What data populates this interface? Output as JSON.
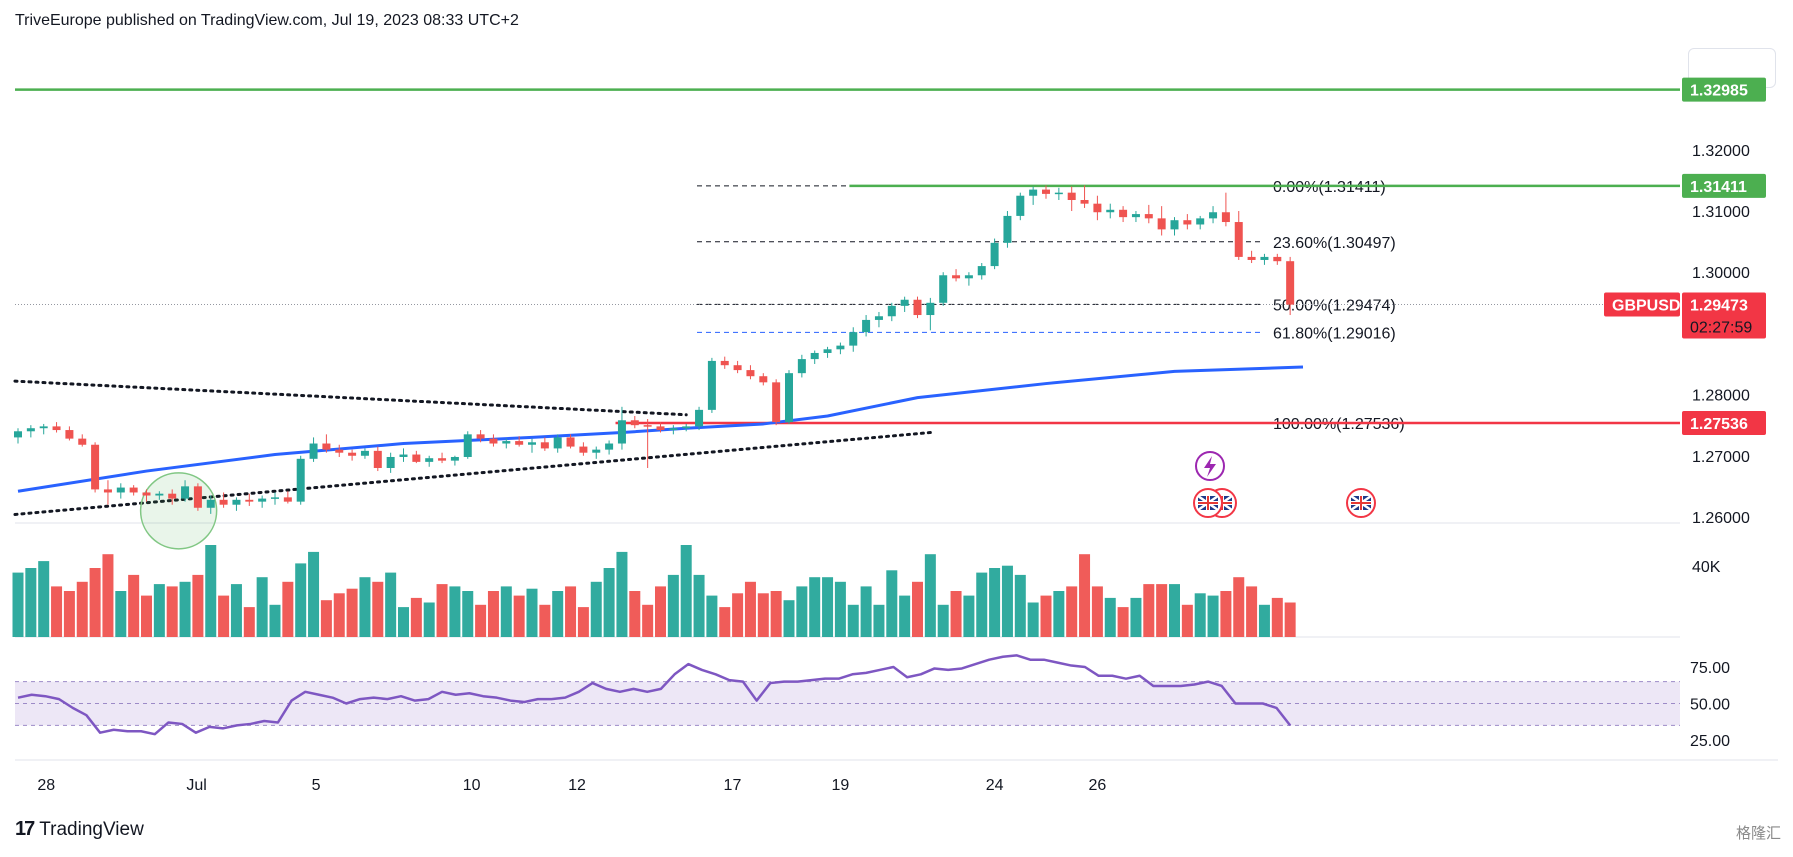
{
  "header": {
    "text": "TriveEurope published on TradingView.com, Jul 19, 2023 08:33 UTC+2"
  },
  "footer": {
    "logo": "17",
    "brand": "TradingView"
  },
  "watermark": {
    "text": "格隆汇"
  },
  "colors": {
    "up": "#26a69a",
    "down": "#ef5350",
    "ma": "#2962ff",
    "rsi": "#7e57c2",
    "rsi_band": "#ede7f6",
    "green_line": "#4caf50",
    "red_line": "#f23645",
    "fib_blue": "#2962ff"
  },
  "chart_data": {
    "type": "candlestick",
    "symbol": "GBPUSD",
    "last_price": "1.29473",
    "countdown": "02:27:59",
    "ylim": [
      1.2595,
      1.3355
    ],
    "price_ticks": [
      "1.32000",
      "1.31000",
      "1.30000",
      "1.28000",
      "1.27000",
      "1.26000"
    ],
    "x_ticks": [
      {
        "label": "28",
        "index": 2.2
      },
      {
        "label": "Jul",
        "index": 13.9
      },
      {
        "label": "5",
        "index": 23.2
      },
      {
        "label": "10",
        "index": 35.3
      },
      {
        "label": "12",
        "index": 43.5
      },
      {
        "label": "17",
        "index": 55.6
      },
      {
        "label": "19",
        "index": 64.0
      },
      {
        "label": "24",
        "index": 76.0
      },
      {
        "label": "26",
        "index": 84.0
      }
    ],
    "horizontal_levels": [
      {
        "label": "1.32985",
        "price": 1.32985,
        "color": "#4caf50"
      },
      {
        "label": "1.31411",
        "price": 1.31411,
        "color": "#4caf50"
      },
      {
        "label": "1.27536",
        "price": 1.27536,
        "color": "#f23645"
      }
    ],
    "fibonacci": [
      {
        "label": "0.00%(1.31411)",
        "price": 1.31411
      },
      {
        "label": "23.60%(1.30497)",
        "price": 1.30497
      },
      {
        "label": "50.00%(1.29474)",
        "price": 1.29474
      },
      {
        "label": "61.80%(1.29016)",
        "price": 1.29016
      },
      {
        "label": "100.00%(1.27536)",
        "price": 1.27536
      }
    ],
    "candles": [
      [
        1.273,
        1.2745,
        1.272,
        1.274
      ],
      [
        1.274,
        1.275,
        1.273,
        1.2745
      ],
      [
        1.2745,
        1.2752,
        1.2735,
        1.2748
      ],
      [
        1.2748,
        1.2755,
        1.2738,
        1.2742
      ],
      [
        1.2742,
        1.2748,
        1.2725,
        1.2728
      ],
      [
        1.2728,
        1.2735,
        1.2715,
        1.2718
      ],
      [
        1.2718,
        1.2722,
        1.264,
        1.2645
      ],
      [
        1.2645,
        1.266,
        1.262,
        1.264
      ],
      [
        1.264,
        1.2655,
        1.263,
        1.2648
      ],
      [
        1.2648,
        1.2652,
        1.2635,
        1.264
      ],
      [
        1.264,
        1.2645,
        1.2625,
        1.2635
      ],
      [
        1.2635,
        1.2642,
        1.2628,
        1.2638
      ],
      [
        1.2638,
        1.2645,
        1.262,
        1.263
      ],
      [
        1.263,
        1.266,
        1.2625,
        1.265
      ],
      [
        1.265,
        1.2655,
        1.261,
        1.2615
      ],
      [
        1.2615,
        1.2635,
        1.2605,
        1.2628
      ],
      [
        1.2628,
        1.264,
        1.2615,
        1.262
      ],
      [
        1.262,
        1.2632,
        1.261,
        1.2628
      ],
      [
        1.2628,
        1.2638,
        1.2618,
        1.2625
      ],
      [
        1.2625,
        1.2635,
        1.2615,
        1.263
      ],
      [
        1.263,
        1.264,
        1.262,
        1.2632
      ],
      [
        1.2632,
        1.2642,
        1.2622,
        1.2625
      ],
      [
        1.2625,
        1.27,
        1.262,
        1.2695
      ],
      [
        1.2695,
        1.273,
        1.269,
        1.272
      ],
      [
        1.272,
        1.2735,
        1.2705,
        1.271
      ],
      [
        1.271,
        1.2718,
        1.2698,
        1.2705
      ],
      [
        1.2705,
        1.271,
        1.2692,
        1.27
      ],
      [
        1.27,
        1.2712,
        1.2695,
        1.2708
      ],
      [
        1.2708,
        1.2715,
        1.2675,
        1.268
      ],
      [
        1.268,
        1.2705,
        1.2672,
        1.2698
      ],
      [
        1.2698,
        1.2712,
        1.269,
        1.2702
      ],
      [
        1.2702,
        1.2708,
        1.2688,
        1.269
      ],
      [
        1.269,
        1.27,
        1.2682,
        1.2696
      ],
      [
        1.2696,
        1.2705,
        1.2688,
        1.2692
      ],
      [
        1.2692,
        1.27,
        1.2684,
        1.2698
      ],
      [
        1.2698,
        1.274,
        1.2695,
        1.2735
      ],
      [
        1.2735,
        1.2742,
        1.2722,
        1.2728
      ],
      [
        1.2728,
        1.2735,
        1.2715,
        1.272
      ],
      [
        1.272,
        1.2728,
        1.2712,
        1.2724
      ],
      [
        1.2724,
        1.2732,
        1.2715,
        1.2718
      ],
      [
        1.2718,
        1.2728,
        1.2705,
        1.2722
      ],
      [
        1.2722,
        1.273,
        1.2708,
        1.2712
      ],
      [
        1.2712,
        1.2735,
        1.2705,
        1.273
      ],
      [
        1.273,
        1.2735,
        1.2712,
        1.2715
      ],
      [
        1.2715,
        1.2722,
        1.27,
        1.2705
      ],
      [
        1.2705,
        1.2715,
        1.2695,
        1.271
      ],
      [
        1.271,
        1.2725,
        1.2702,
        1.272
      ],
      [
        1.272,
        1.278,
        1.271,
        1.2758
      ],
      [
        1.2758,
        1.2765,
        1.2745,
        1.275
      ],
      [
        1.275,
        1.276,
        1.268,
        1.2748
      ],
      [
        1.2748,
        1.2755,
        1.2738,
        1.2742
      ],
      [
        1.2742,
        1.275,
        1.2735,
        1.2745
      ],
      [
        1.2745,
        1.2752,
        1.274,
        1.2748
      ],
      [
        1.2748,
        1.278,
        1.2742,
        1.2775
      ],
      [
        1.2775,
        1.286,
        1.277,
        1.2855
      ],
      [
        1.2855,
        1.2862,
        1.2842,
        1.2848
      ],
      [
        1.2848,
        1.2855,
        1.2835,
        1.284
      ],
      [
        1.284,
        1.2848,
        1.2825,
        1.283
      ],
      [
        1.283,
        1.2835,
        1.2815,
        1.282
      ],
      [
        1.282,
        1.2825,
        1.275,
        1.2755
      ],
      [
        1.2755,
        1.284,
        1.2752,
        1.2835
      ],
      [
        1.2835,
        1.2865,
        1.2828,
        1.2858
      ],
      [
        1.2858,
        1.2872,
        1.285,
        1.2868
      ],
      [
        1.2868,
        1.2878,
        1.286,
        1.2874
      ],
      [
        1.2874,
        1.2885,
        1.2866,
        1.288
      ],
      [
        1.288,
        1.291,
        1.287,
        1.2902
      ],
      [
        1.2902,
        1.293,
        1.2895,
        1.2922
      ],
      [
        1.2922,
        1.2935,
        1.291,
        1.2928
      ],
      [
        1.2928,
        1.295,
        1.292,
        1.2945
      ],
      [
        1.2945,
        1.296,
        1.2935,
        1.2955
      ],
      [
        1.2955,
        1.296,
        1.2925,
        1.293
      ],
      [
        1.293,
        1.2958,
        1.2905,
        1.295
      ],
      [
        1.295,
        1.3,
        1.2945,
        1.2995
      ],
      [
        1.2995,
        1.3005,
        1.2985,
        1.299
      ],
      [
        1.299,
        1.3,
        1.2978,
        1.2995
      ],
      [
        1.2995,
        1.3015,
        1.2988,
        1.301
      ],
      [
        1.301,
        1.3055,
        1.3005,
        1.3048
      ],
      [
        1.3048,
        1.31,
        1.304,
        1.3092
      ],
      [
        1.3092,
        1.313,
        1.3085,
        1.3125
      ],
      [
        1.3125,
        1.314,
        1.311,
        1.3135
      ],
      [
        1.3135,
        1.3142,
        1.312,
        1.3128
      ],
      [
        1.3128,
        1.3138,
        1.3118,
        1.313
      ],
      [
        1.313,
        1.314,
        1.31,
        1.3118
      ],
      [
        1.3118,
        1.3142,
        1.3105,
        1.3112
      ],
      [
        1.3112,
        1.3125,
        1.3085,
        1.3098
      ],
      [
        1.3098,
        1.3112,
        1.3088,
        1.3102
      ],
      [
        1.3102,
        1.3108,
        1.3082,
        1.309
      ],
      [
        1.309,
        1.31,
        1.3082,
        1.3095
      ],
      [
        1.3095,
        1.311,
        1.308,
        1.3088
      ],
      [
        1.3088,
        1.3108,
        1.306,
        1.307
      ],
      [
        1.307,
        1.309,
        1.306,
        1.3085
      ],
      [
        1.3085,
        1.3095,
        1.307,
        1.3078
      ],
      [
        1.3078,
        1.3092,
        1.307,
        1.3088
      ],
      [
        1.3088,
        1.3108,
        1.308,
        1.3098
      ],
      [
        1.3098,
        1.313,
        1.3075,
        1.3082
      ],
      [
        1.3082,
        1.31,
        1.302,
        1.3025
      ],
      [
        1.3025,
        1.3035,
        1.3015,
        1.302
      ],
      [
        1.302,
        1.303,
        1.3012,
        1.3025
      ],
      [
        1.3025,
        1.303,
        1.3012,
        1.3018
      ],
      [
        1.3018,
        1.3025,
        1.293,
        1.2947
      ]
    ],
    "volume": [
      28,
      30,
      33,
      22,
      20,
      24,
      30,
      36,
      20,
      27,
      18,
      23,
      22,
      24,
      27,
      40,
      18,
      23,
      13,
      26,
      14,
      24,
      32,
      37,
      16,
      19,
      21,
      26,
      24,
      28,
      13,
      17,
      15,
      23,
      22,
      20,
      14,
      20,
      22,
      18,
      21,
      14,
      20,
      22,
      13,
      24,
      30,
      37,
      20,
      14,
      22,
      27,
      40,
      27,
      18,
      13,
      19,
      24,
      19,
      20,
      16,
      22,
      26,
      26,
      24,
      14,
      22,
      14,
      29,
      18,
      24,
      36,
      14,
      20,
      18,
      28,
      30,
      31,
      27,
      15,
      18,
      20,
      22,
      36,
      22,
      17,
      13,
      17,
      23,
      23,
      23,
      14,
      19,
      18,
      20,
      26,
      22,
      14,
      17,
      15
    ]
  }
}
